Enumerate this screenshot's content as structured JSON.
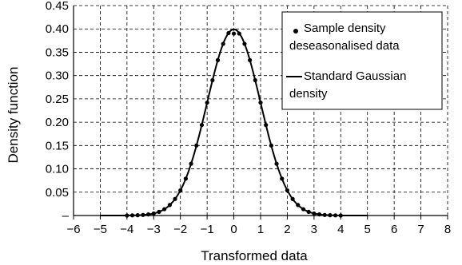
{
  "chart_data": {
    "type": "scatter",
    "xlabel": "Transformed data",
    "ylabel": "Density function",
    "xlim": [
      -6,
      8
    ],
    "ylim": [
      0,
      0.45
    ],
    "grid": true,
    "legend_position": "top-right",
    "x_ticks": [
      "−6",
      "−5",
      "−4",
      "−3",
      "−2",
      "−1",
      "0",
      "1",
      "2",
      "3",
      "4",
      "5",
      "6",
      "7",
      "8"
    ],
    "y_ticks": [
      "–",
      "0.05",
      "0.10",
      "0.15",
      "0.20",
      "0.25",
      "0.30",
      "0.35",
      "0.40",
      "0.45"
    ],
    "series": [
      {
        "name": "Sample density deseasonalised data",
        "kind": "points",
        "color": "#000000",
        "points": [
          [
            -4.0,
            0.0
          ],
          [
            -3.8,
            0.0003
          ],
          [
            -3.6,
            0.0006
          ],
          [
            -3.4,
            0.0012
          ],
          [
            -3.2,
            0.0024
          ],
          [
            -3.0,
            0.0044
          ],
          [
            -2.8,
            0.0079
          ],
          [
            -2.6,
            0.0136
          ],
          [
            -2.4,
            0.0224
          ],
          [
            -2.2,
            0.0355
          ],
          [
            -2.0,
            0.054
          ],
          [
            -1.8,
            0.079
          ],
          [
            -1.6,
            0.111
          ],
          [
            -1.4,
            0.15
          ],
          [
            -1.2,
            0.194
          ],
          [
            -1.0,
            0.242
          ],
          [
            -0.8,
            0.29
          ],
          [
            -0.6,
            0.333
          ],
          [
            -0.4,
            0.368
          ],
          [
            -0.2,
            0.391
          ],
          [
            0.0,
            0.39
          ],
          [
            0.2,
            0.39
          ],
          [
            0.4,
            0.368
          ],
          [
            0.6,
            0.333
          ],
          [
            0.8,
            0.29
          ],
          [
            1.0,
            0.242
          ],
          [
            1.2,
            0.194
          ],
          [
            1.4,
            0.15
          ],
          [
            1.6,
            0.111
          ],
          [
            1.8,
            0.079
          ],
          [
            2.0,
            0.054
          ],
          [
            2.2,
            0.0355
          ],
          [
            2.4,
            0.0224
          ],
          [
            2.6,
            0.0136
          ],
          [
            2.8,
            0.0079
          ],
          [
            3.0,
            0.0044
          ],
          [
            3.2,
            0.0024
          ],
          [
            3.4,
            0.0012
          ],
          [
            3.6,
            0.0006
          ],
          [
            3.8,
            0.0003
          ],
          [
            4.0,
            0.0
          ]
        ]
      },
      {
        "name": "Standard Gaussian density",
        "kind": "line",
        "color": "#000000",
        "x_range": [
          -5,
          5
        ]
      }
    ],
    "legend": {
      "entries": [
        {
          "marker": "dot",
          "lines": [
            "Sample density",
            "deseasonalised data"
          ]
        },
        {
          "marker": "line",
          "lines": [
            "Standard Gaussian",
            "density"
          ]
        }
      ]
    }
  }
}
